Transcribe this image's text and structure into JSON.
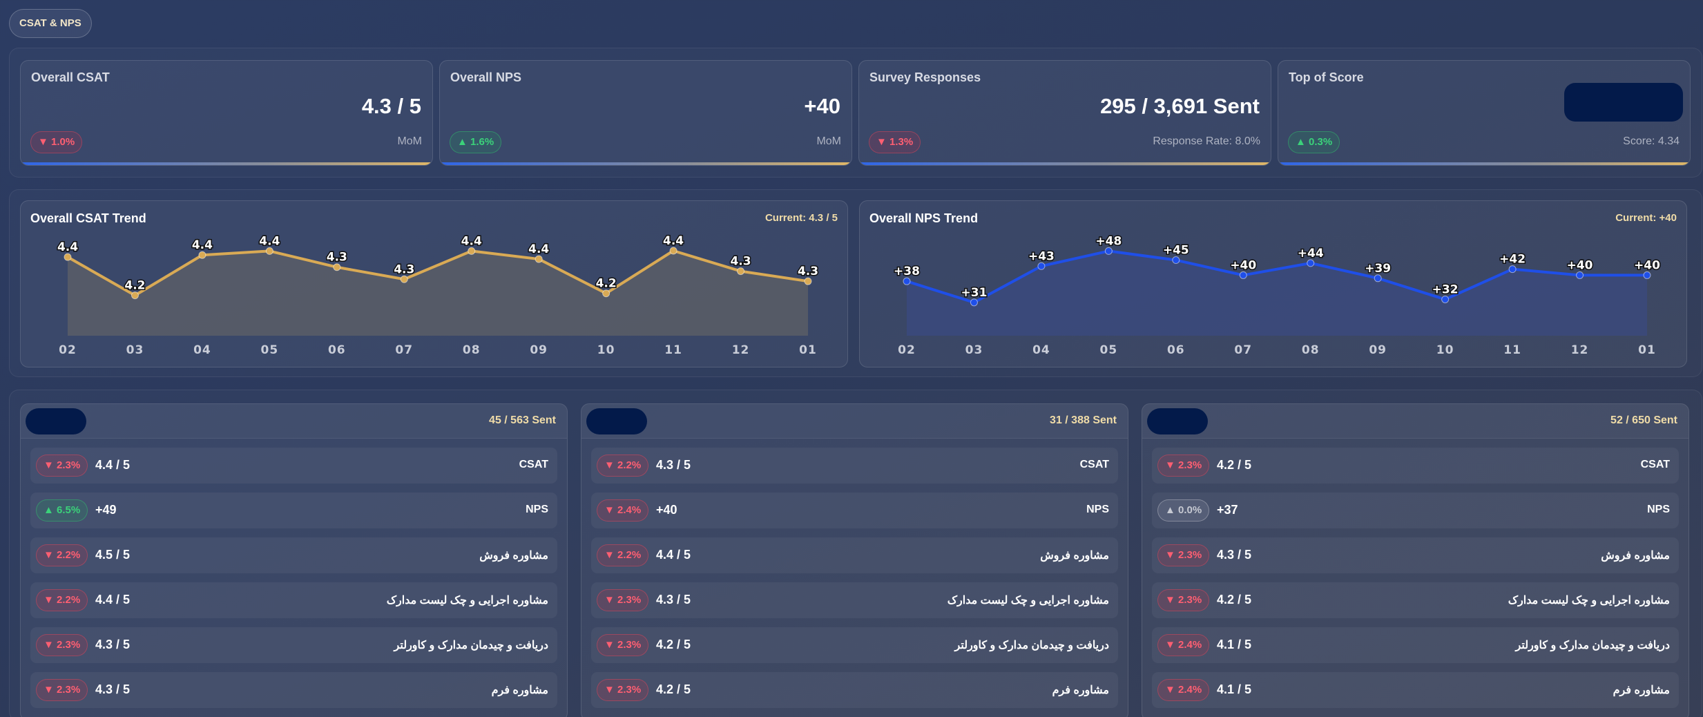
{
  "header": {
    "tag": "CSAT & NPS"
  },
  "kpis": [
    {
      "title": "Overall CSAT",
      "value": "4.3 / 5",
      "badge": "▼ 1.0%",
      "dir": "down",
      "note": "MoM"
    },
    {
      "title": "Overall NPS",
      "value": "+40",
      "badge": "▲ 1.6%",
      "dir": "up",
      "note": "MoM"
    },
    {
      "title": "Survey Responses",
      "value": "295 / 3,691 Sent",
      "badge": "▼ 1.3%",
      "dir": "down",
      "note": "Response Rate: 8.0%"
    },
    {
      "title": "Top of Score",
      "value": "",
      "badge": "▲ 0.3%",
      "dir": "up",
      "note": "Score: 4.34"
    }
  ],
  "chart_data": [
    {
      "type": "area",
      "title": "Overall CSAT Trend",
      "current": "Current: 4.3 / 5",
      "categories": [
        "02",
        "03",
        "04",
        "05",
        "06",
        "07",
        "08",
        "09",
        "10",
        "11",
        "12",
        "01"
      ],
      "values": [
        4.4,
        4.2,
        4.4,
        4.4,
        4.3,
        4.3,
        4.4,
        4.4,
        4.2,
        4.4,
        4.3,
        4.3
      ],
      "plot": [
        4.39,
        4.2,
        4.4,
        4.42,
        4.34,
        4.28,
        4.42,
        4.38,
        4.21,
        4.45,
        4.32,
        4.27
      ],
      "labels": [
        "4.4",
        "4.2",
        "4.4",
        "4.4",
        "4.3",
        "4.3",
        "4.4",
        "4.4",
        "4.2",
        "4.4",
        "4.3",
        "4.3"
      ],
      "ylim": [
        4.0,
        4.6
      ],
      "color": "#d9aa55",
      "fill": "#6c6a66"
    },
    {
      "type": "area",
      "title": "Overall NPS Trend",
      "current": "Current: +40",
      "categories": [
        "02",
        "03",
        "04",
        "05",
        "06",
        "07",
        "08",
        "09",
        "10",
        "11",
        "12",
        "01"
      ],
      "values": [
        38,
        31,
        43,
        48,
        45,
        40,
        44,
        39,
        32,
        42,
        40,
        40
      ],
      "plot": [
        38,
        31,
        43,
        48,
        45,
        40,
        44,
        39,
        32,
        42,
        40,
        40
      ],
      "labels": [
        "+38",
        "+31",
        "+43",
        "+48",
        "+45",
        "+40",
        "+44",
        "+39",
        "+32",
        "+42",
        "+40",
        "+40"
      ],
      "ylim": [
        20,
        60
      ],
      "color": "#1f4fe8",
      "fill": "#3a4a8a"
    }
  ],
  "segments": [
    {
      "sent": "45 / 563 Sent",
      "rows": [
        {
          "badge": "▼ 2.3%",
          "dir": "down",
          "value": "4.4 / 5",
          "label": "CSAT"
        },
        {
          "badge": "▲ 6.5%",
          "dir": "up",
          "value": "+49",
          "label": "NPS"
        },
        {
          "badge": "▼ 2.2%",
          "dir": "down",
          "value": "4.5 / 5",
          "label": "مشاوره فروش"
        },
        {
          "badge": "▼ 2.2%",
          "dir": "down",
          "value": "4.4 / 5",
          "label": "مشاوره اجرایی و چک لیست مدارک"
        },
        {
          "badge": "▼ 2.3%",
          "dir": "down",
          "value": "4.3 / 5",
          "label": "دریافت و چیدمان مدارک و کاورلتر"
        },
        {
          "badge": "▼ 2.3%",
          "dir": "down",
          "value": "4.3 / 5",
          "label": "مشاوره فرم"
        }
      ]
    },
    {
      "sent": "31 / 388 Sent",
      "rows": [
        {
          "badge": "▼ 2.2%",
          "dir": "down",
          "value": "4.3 / 5",
          "label": "CSAT"
        },
        {
          "badge": "▼ 2.4%",
          "dir": "down",
          "value": "+40",
          "label": "NPS"
        },
        {
          "badge": "▼ 2.2%",
          "dir": "down",
          "value": "4.4 / 5",
          "label": "مشاوره فروش"
        },
        {
          "badge": "▼ 2.3%",
          "dir": "down",
          "value": "4.3 / 5",
          "label": "مشاوره اجرایی و چک لیست مدارک"
        },
        {
          "badge": "▼ 2.3%",
          "dir": "down",
          "value": "4.2 / 5",
          "label": "دریافت و چیدمان مدارک و کاورلتر"
        },
        {
          "badge": "▼ 2.3%",
          "dir": "down",
          "value": "4.2 / 5",
          "label": "مشاوره فرم"
        }
      ]
    },
    {
      "sent": "52 / 650 Sent",
      "rows": [
        {
          "badge": "▼ 2.3%",
          "dir": "down",
          "value": "4.2 / 5",
          "label": "CSAT"
        },
        {
          "badge": "▲ 0.0%",
          "dir": "flat",
          "value": "+37",
          "label": "NPS"
        },
        {
          "badge": "▼ 2.3%",
          "dir": "down",
          "value": "4.3 / 5",
          "label": "مشاوره فروش"
        },
        {
          "badge": "▼ 2.3%",
          "dir": "down",
          "value": "4.2 / 5",
          "label": "مشاوره اجرایی و چک لیست مدارک"
        },
        {
          "badge": "▼ 2.4%",
          "dir": "down",
          "value": "4.1 / 5",
          "label": "دریافت و چیدمان مدارک و کاورلتر"
        },
        {
          "badge": "▼ 2.4%",
          "dir": "down",
          "value": "4.1 / 5",
          "label": "مشاوره فرم"
        }
      ]
    }
  ]
}
